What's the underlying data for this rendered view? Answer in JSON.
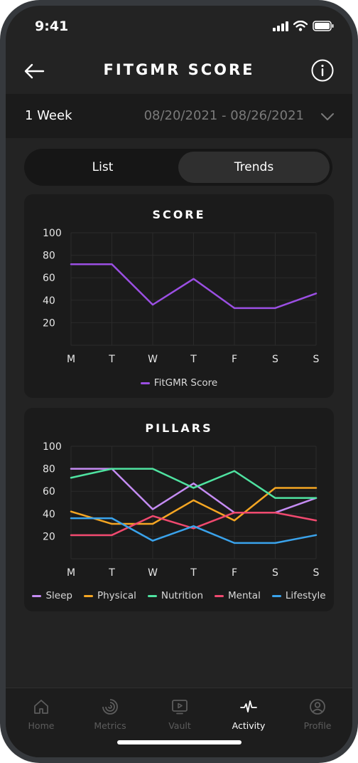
{
  "status": {
    "time": "9:41"
  },
  "header": {
    "title": "FITGMR SCORE",
    "back_icon": "arrow-left-icon",
    "info_icon": "info-icon"
  },
  "period": {
    "label": "1 Week",
    "range": "08/20/2021 - 08/26/2021"
  },
  "toggle": {
    "list_label": "List",
    "trends_label": "Trends",
    "selected": "Trends"
  },
  "score_card": {
    "title": "SCORE",
    "chart_data": {
      "type": "line",
      "title": "SCORE",
      "categories": [
        "M",
        "T",
        "W",
        "T",
        "F",
        "S",
        "S"
      ],
      "yticks": [
        100,
        80,
        60,
        40,
        20
      ],
      "ylim": [
        0,
        100
      ],
      "grid": true,
      "legend": "bottom",
      "series": [
        {
          "name": "FitGMR Score",
          "color": "#9b4fe3",
          "values": [
            72,
            72,
            36,
            59,
            33,
            33,
            46
          ]
        }
      ]
    }
  },
  "pillars_card": {
    "title": "PILLARS",
    "chart_data": {
      "type": "line",
      "title": "PILLARS",
      "categories": [
        "M",
        "T",
        "W",
        "T",
        "F",
        "S",
        "S"
      ],
      "yticks": [
        100,
        80,
        60,
        40,
        20
      ],
      "ylim": [
        0,
        100
      ],
      "grid": true,
      "legend": "bottom",
      "series": [
        {
          "name": "Sleep",
          "color": "#c58cf3",
          "values": [
            80,
            80,
            44,
            67,
            41,
            41,
            54
          ]
        },
        {
          "name": "Physical",
          "color": "#f5a623",
          "values": [
            42,
            31,
            31,
            52,
            34,
            63,
            63
          ]
        },
        {
          "name": "Nutrition",
          "color": "#4fe3a1",
          "values": [
            72,
            80,
            80,
            63,
            78,
            54,
            54
          ]
        },
        {
          "name": "Mental",
          "color": "#f0496f",
          "values": [
            21,
            21,
            38,
            27,
            41,
            41,
            34
          ]
        },
        {
          "name": "Lifestyle",
          "color": "#3aa3ec",
          "values": [
            36,
            36,
            16,
            29,
            14,
            14,
            21
          ]
        }
      ]
    }
  },
  "tabbar": {
    "items": [
      {
        "label": "Home",
        "icon": "home-icon",
        "active": false
      },
      {
        "label": "Metrics",
        "icon": "metrics-icon",
        "active": false
      },
      {
        "label": "Vault",
        "icon": "vault-play-icon",
        "active": false
      },
      {
        "label": "Activity",
        "icon": "activity-pulse-icon",
        "active": true
      },
      {
        "label": "Profile",
        "icon": "profile-icon",
        "active": false
      }
    ]
  }
}
